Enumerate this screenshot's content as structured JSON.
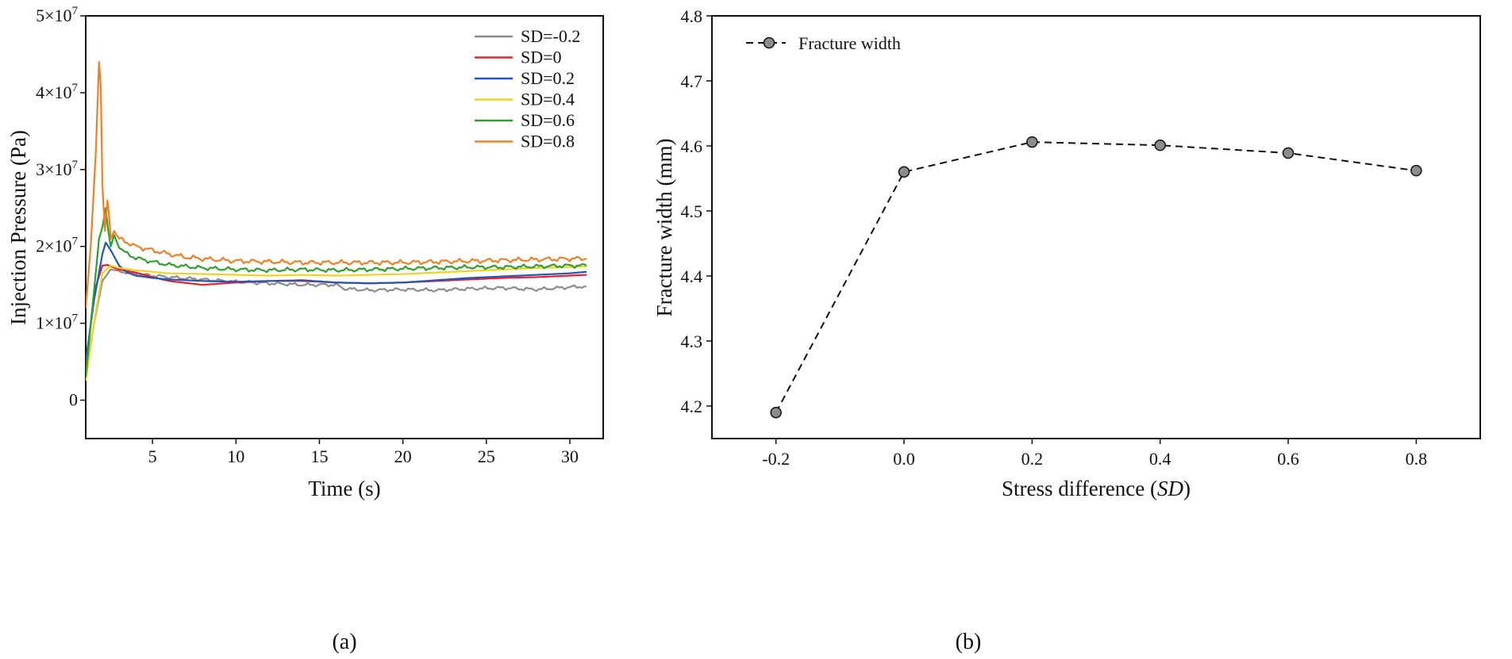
{
  "chart_data": [
    {
      "panel": "(a)",
      "type": "line",
      "xlabel": "Time (s)",
      "ylabel": "Injection Pressure (Pa)",
      "xlim": [
        1,
        32
      ],
      "ylim": [
        -5000000,
        50000000
      ],
      "x_ticks": [
        5,
        10,
        15,
        20,
        25,
        30
      ],
      "y_ticks": [
        0,
        10000000,
        20000000,
        30000000,
        40000000,
        50000000
      ],
      "y_tick_labels": [
        {
          "mantissa": "0",
          "exp": ""
        },
        {
          "mantissa": "1×10",
          "exp": "7"
        },
        {
          "mantissa": "2×10",
          "exp": "7"
        },
        {
          "mantissa": "3×10",
          "exp": "7"
        },
        {
          "mantissa": "4×10",
          "exp": "7"
        },
        {
          "mantissa": "5×10",
          "exp": "7"
        }
      ],
      "legend_position": "top-right",
      "series": [
        {
          "name": "SD=-0.2",
          "color": "#8c8c8c",
          "x": [
            1,
            1.5,
            2,
            2.5,
            3,
            4,
            6,
            8,
            10,
            12,
            14,
            16,
            16.5,
            18,
            20,
            22,
            24,
            26,
            28,
            30,
            31
          ],
          "y": [
            3000000,
            10000000,
            15500000,
            17000000,
            16800000,
            16400000,
            16000000,
            15700000,
            15400000,
            15200000,
            15000000,
            15000000,
            14500000,
            14300000,
            14400000,
            14300000,
            14500000,
            14600000,
            14400000,
            14700000,
            14800000
          ],
          "noise": 250000
        },
        {
          "name": "SD=0",
          "color": "#e8202a",
          "x": [
            1,
            1.5,
            2,
            2.3,
            2.6,
            3,
            4,
            5,
            6,
            8,
            10,
            12,
            14,
            16,
            18,
            20,
            22,
            24,
            26,
            28,
            30,
            31
          ],
          "y": [
            4000000,
            14000000,
            17500000,
            17600000,
            17300000,
            17000000,
            16600000,
            16000000,
            15500000,
            15000000,
            15300000,
            15500000,
            15500000,
            15300000,
            15200000,
            15300000,
            15500000,
            15700000,
            15900000,
            16000000,
            16200000,
            16300000
          ],
          "noise": 0
        },
        {
          "name": "SD=0.2",
          "color": "#2255b8",
          "x": [
            1,
            1.5,
            2,
            2.2,
            2.5,
            3,
            3.5,
            4,
            5,
            6,
            8,
            10,
            12,
            14,
            16,
            18,
            20,
            22,
            24,
            26,
            28,
            30,
            31
          ],
          "y": [
            5000000,
            13000000,
            19000000,
            20500000,
            19500000,
            17500000,
            16600000,
            16200000,
            15900000,
            15700000,
            15500000,
            15400000,
            15500000,
            15600000,
            15300000,
            15200000,
            15300000,
            15600000,
            15900000,
            16100000,
            16300000,
            16500000,
            16700000
          ],
          "noise": 0
        },
        {
          "name": "SD=0.4",
          "color": "#f2d21b",
          "x": [
            1,
            1.5,
            2,
            2.5,
            3,
            4,
            5,
            6,
            8,
            10,
            12,
            14,
            16,
            18,
            20,
            22,
            24,
            26,
            28,
            30,
            31
          ],
          "y": [
            2500000,
            10000000,
            16500000,
            17500000,
            17200000,
            16900000,
            16700000,
            16500000,
            16400000,
            16300000,
            16200000,
            16300000,
            16200000,
            16300000,
            16400000,
            16600000,
            16800000,
            17000000,
            17200000,
            17300000,
            17400000
          ],
          "noise": 0
        },
        {
          "name": "SD=0.6",
          "color": "#2ea02c",
          "x": [
            1,
            1.4,
            1.8,
            2.0,
            2.2,
            2.35,
            2.5,
            2.7,
            3,
            3.5,
            4,
            5,
            6,
            7,
            8,
            10,
            12,
            14,
            16,
            18,
            20,
            22,
            24,
            26,
            28,
            30,
            31
          ],
          "y": [
            3000000,
            12000000,
            21000000,
            22500000,
            25000000,
            22000000,
            20000000,
            21500000,
            19800000,
            19000000,
            18500000,
            18000000,
            17600000,
            17400000,
            17200000,
            17000000,
            16900000,
            17000000,
            16900000,
            17000000,
            17100000,
            17200000,
            17300000,
            17300000,
            17400000,
            17500000,
            17500000
          ],
          "noise": 300000
        },
        {
          "name": "SD=0.8",
          "color": "#f08025",
          "x": [
            1,
            1.3,
            1.6,
            1.8,
            1.9,
            2.0,
            2.15,
            2.3,
            2.4,
            2.5,
            2.7,
            3,
            3.5,
            4,
            5,
            6,
            7,
            8,
            10,
            12,
            14,
            16,
            18,
            20,
            22,
            24,
            26,
            28,
            30,
            31
          ],
          "y": [
            12000000,
            20000000,
            32000000,
            44000000,
            41000000,
            28000000,
            22000000,
            26000000,
            24000000,
            21000000,
            22000000,
            21000000,
            20500000,
            20000000,
            19500000,
            19000000,
            18600000,
            18400000,
            18100000,
            18000000,
            17900000,
            17900000,
            17900000,
            17900000,
            18000000,
            18100000,
            18200000,
            18300000,
            18400000,
            18400000
          ],
          "noise": 350000
        }
      ]
    },
    {
      "panel": "(b)",
      "type": "line",
      "style": "dashed-with-markers",
      "xlabel_main": "Stress difference (",
      "xlabel_italic": "SD",
      "xlabel_end": ")",
      "ylabel": "Fracture width (mm)",
      "xlim": [
        -0.3,
        0.9
      ],
      "ylim": [
        4.15,
        4.8
      ],
      "x_ticks": [
        -0.2,
        0.0,
        0.2,
        0.4,
        0.6,
        0.8
      ],
      "x_tick_labels": [
        "-0.2",
        "0.0",
        "0.2",
        "0.4",
        "0.6",
        "0.8"
      ],
      "y_ticks": [
        4.2,
        4.3,
        4.4,
        4.5,
        4.6,
        4.7,
        4.8
      ],
      "y_tick_labels": [
        "4.2",
        "4.3",
        "4.4",
        "4.5",
        "4.6",
        "4.7",
        "4.8"
      ],
      "legend_position": "top-left",
      "series": [
        {
          "name": "Fracture width",
          "color": "#111111",
          "marker_fill": "#8c8c8c",
          "x": [
            -0.2,
            0.0,
            0.2,
            0.4,
            0.6,
            0.8
          ],
          "y": [
            4.19,
            4.56,
            4.606,
            4.601,
            4.589,
            4.562
          ]
        }
      ]
    }
  ]
}
